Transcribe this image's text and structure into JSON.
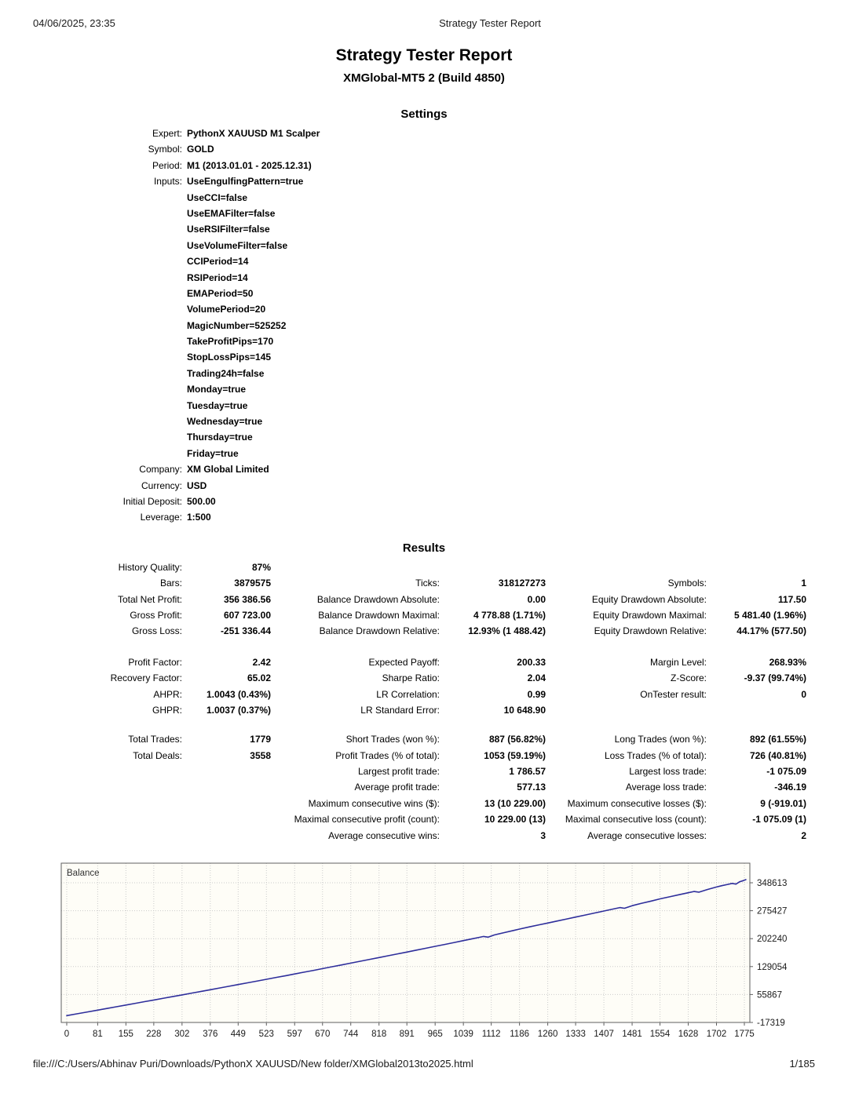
{
  "header": {
    "datetime": "04/06/2025, 23:35",
    "title": "Strategy Tester Report"
  },
  "report": {
    "title": "Strategy Tester Report",
    "subtitle": "XMGlobal-MT5 2 (Build 4850)"
  },
  "settings": {
    "heading": "Settings",
    "rows": [
      {
        "label": "Expert:",
        "value": "PythonX XAUUSD M1 Scalper"
      },
      {
        "label": "Symbol:",
        "value": "GOLD"
      },
      {
        "label": "Period:",
        "value": "M1 (2013.01.01 - 2025.12.31)"
      },
      {
        "label": "Inputs:",
        "value": "UseEngulfingPattern=true"
      },
      {
        "label": "",
        "value": "UseCCI=false"
      },
      {
        "label": "",
        "value": "UseEMAFilter=false"
      },
      {
        "label": "",
        "value": "UseRSIFilter=false"
      },
      {
        "label": "",
        "value": "UseVolumeFilter=false"
      },
      {
        "label": "",
        "value": "CCIPeriod=14"
      },
      {
        "label": "",
        "value": "RSIPeriod=14"
      },
      {
        "label": "",
        "value": "EMAPeriod=50"
      },
      {
        "label": "",
        "value": "VolumePeriod=20"
      },
      {
        "label": "",
        "value": "MagicNumber=525252"
      },
      {
        "label": "",
        "value": "TakeProfitPips=170"
      },
      {
        "label": "",
        "value": "StopLossPips=145"
      },
      {
        "label": "",
        "value": "Trading24h=false"
      },
      {
        "label": "",
        "value": "Monday=true"
      },
      {
        "label": "",
        "value": "Tuesday=true"
      },
      {
        "label": "",
        "value": "Wednesday=true"
      },
      {
        "label": "",
        "value": "Thursday=true"
      },
      {
        "label": "",
        "value": "Friday=true"
      },
      {
        "label": "Company:",
        "value": "XM Global Limited"
      },
      {
        "label": "Currency:",
        "value": "USD"
      },
      {
        "label": "Initial Deposit:",
        "value": "500.00"
      },
      {
        "label": "Leverage:",
        "value": "1:500"
      }
    ]
  },
  "results": {
    "heading": "Results",
    "blocks": [
      {
        "rows": [
          [
            "History Quality:",
            "87%",
            "",
            "",
            "",
            ""
          ],
          [
            "Bars:",
            "3879575",
            "Ticks:",
            "318127273",
            "Symbols:",
            "1"
          ],
          [
            "Total Net Profit:",
            "356 386.56",
            "Balance Drawdown Absolute:",
            "0.00",
            "Equity Drawdown Absolute:",
            "117.50"
          ],
          [
            "Gross Profit:",
            "607 723.00",
            "Balance Drawdown Maximal:",
            "4 778.88 (1.71%)",
            "Equity Drawdown Maximal:",
            "5 481.40 (1.96%)"
          ],
          [
            "Gross Loss:",
            "-251 336.44",
            "Balance Drawdown Relative:",
            "12.93% (1 488.42)",
            "Equity Drawdown Relative:",
            "44.17% (577.50)"
          ]
        ]
      },
      {
        "rows": [
          [
            "Profit Factor:",
            "2.42",
            "Expected Payoff:",
            "200.33",
            "Margin Level:",
            "268.93%"
          ],
          [
            "Recovery Factor:",
            "65.02",
            "Sharpe Ratio:",
            "2.04",
            "Z-Score:",
            "-9.37 (99.74%)"
          ],
          [
            "AHPR:",
            "1.0043 (0.43%)",
            "LR Correlation:",
            "0.99",
            "OnTester result:",
            "0"
          ],
          [
            "GHPR:",
            "1.0037 (0.37%)",
            "LR Standard Error:",
            "10 648.90",
            "",
            ""
          ]
        ]
      },
      {
        "rows": [
          [
            "Total Trades:",
            "1779",
            "Short Trades (won %):",
            "887 (56.82%)",
            "Long Trades (won %):",
            "892 (61.55%)"
          ],
          [
            "Total Deals:",
            "3558",
            "Profit Trades (% of total):",
            "1053 (59.19%)",
            "Loss Trades (% of total):",
            "726 (40.81%)"
          ],
          [
            "",
            "",
            "Largest profit trade:",
            "1 786.57",
            "Largest loss trade:",
            "-1 075.09"
          ],
          [
            "",
            "",
            "Average profit trade:",
            "577.13",
            "Average loss trade:",
            "-346.19"
          ],
          [
            "",
            "",
            "Maximum consecutive wins ($):",
            "13 (10 229.00)",
            "Maximum consecutive losses ($):",
            "9 (-919.01)"
          ],
          [
            "",
            "",
            "Maximal consecutive profit (count):",
            "10 229.00 (13)",
            "Maximal consecutive loss (count):",
            "-1 075.09 (1)"
          ],
          [
            "",
            "",
            "Average consecutive wins:",
            "3",
            "Average consecutive losses:",
            "2"
          ]
        ]
      }
    ]
  },
  "chart_data": {
    "type": "line",
    "title": "Balance",
    "xlabel": "",
    "ylabel": "",
    "x_ticks": [
      0,
      81,
      155,
      228,
      302,
      376,
      449,
      523,
      597,
      670,
      744,
      818,
      891,
      965,
      1039,
      1112,
      1186,
      1260,
      1333,
      1407,
      1481,
      1554,
      1628,
      1702,
      1775
    ],
    "y_ticks": [
      348613,
      275427,
      202240,
      129054,
      55867,
      -17319
    ],
    "xlim": [
      0,
      1790
    ],
    "ylim": [
      -17319,
      400000
    ],
    "grid": true,
    "legend_position": "top-left-inside",
    "line_color": "#2e2e9b",
    "grid_color": "#cbcbcb",
    "border_color": "#5f5f5f",
    "plot_bg": "#fefdf7",
    "label_color": "#1a1a1a",
    "series": [
      {
        "name": "Balance",
        "points": [
          [
            0,
            500
          ],
          [
            25,
            5000
          ],
          [
            50,
            9500
          ],
          [
            81,
            15000
          ],
          [
            105,
            19350
          ],
          [
            130,
            23850
          ],
          [
            155,
            28350
          ],
          [
            180,
            32850
          ],
          [
            205,
            37350
          ],
          [
            228,
            41500
          ],
          [
            255,
            46400
          ],
          [
            280,
            50900
          ],
          [
            302,
            54900
          ],
          [
            330,
            60000
          ],
          [
            355,
            64600
          ],
          [
            376,
            68400
          ],
          [
            400,
            72850
          ],
          [
            425,
            77450
          ],
          [
            449,
            81900
          ],
          [
            475,
            86700
          ],
          [
            500,
            91400
          ],
          [
            523,
            95700
          ],
          [
            550,
            100800
          ],
          [
            575,
            105500
          ],
          [
            597,
            109700
          ],
          [
            622,
            114500
          ],
          [
            647,
            119250
          ],
          [
            670,
            123700
          ],
          [
            695,
            128550
          ],
          [
            720,
            133400
          ],
          [
            744,
            138100
          ],
          [
            770,
            143150
          ],
          [
            795,
            148100
          ],
          [
            818,
            152650
          ],
          [
            843,
            157600
          ],
          [
            868,
            162550
          ],
          [
            891,
            167150
          ],
          [
            916,
            172150
          ],
          [
            940,
            177000
          ],
          [
            965,
            182050
          ],
          [
            990,
            187100
          ],
          [
            1015,
            192200
          ],
          [
            1039,
            197100
          ],
          [
            1063,
            202050
          ],
          [
            1080,
            205550
          ],
          [
            1092,
            208050
          ],
          [
            1104,
            206200
          ],
          [
            1120,
            211800
          ],
          [
            1145,
            217900
          ],
          [
            1170,
            223600
          ],
          [
            1186,
            227300
          ],
          [
            1212,
            233100
          ],
          [
            1237,
            238400
          ],
          [
            1260,
            243250
          ],
          [
            1285,
            248550
          ],
          [
            1310,
            253900
          ],
          [
            1333,
            258800
          ],
          [
            1358,
            264150
          ],
          [
            1383,
            269500
          ],
          [
            1407,
            274650
          ],
          [
            1432,
            280050
          ],
          [
            1449,
            283700
          ],
          [
            1461,
            281800
          ],
          [
            1481,
            288600
          ],
          [
            1506,
            295000
          ],
          [
            1531,
            300800
          ],
          [
            1554,
            306400
          ],
          [
            1579,
            311850
          ],
          [
            1604,
            317300
          ],
          [
            1628,
            322500
          ],
          [
            1643,
            325750
          ],
          [
            1656,
            323900
          ],
          [
            1678,
            331000
          ],
          [
            1702,
            337600
          ],
          [
            1716,
            341000
          ],
          [
            1731,
            344300
          ],
          [
            1743,
            347000
          ],
          [
            1753,
            345200
          ],
          [
            1763,
            351500
          ],
          [
            1772,
            354200
          ],
          [
            1779,
            356887
          ]
        ]
      }
    ]
  },
  "footer": {
    "path": "file:///C:/Users/Abhinav Puri/Downloads/PythonX XAUUSD/New folder/XMGlobal2013to2025.html",
    "page": "1/185"
  }
}
